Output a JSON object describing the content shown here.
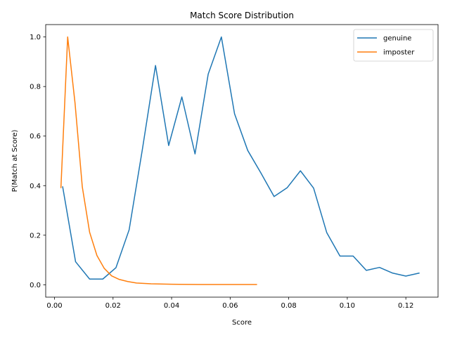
{
  "chart_data": {
    "type": "line",
    "title": "Match Score Distribution",
    "xlabel": "Score",
    "ylabel": "P(Match at Score)",
    "xlim": [
      -0.003,
      0.131
    ],
    "ylim": [
      -0.05,
      1.05
    ],
    "xticks": [
      0.0,
      0.02,
      0.04,
      0.06,
      0.08,
      0.1,
      0.12
    ],
    "xtick_labels": [
      "0.00",
      "0.02",
      "0.04",
      "0.06",
      "0.08",
      "0.10",
      "0.12"
    ],
    "yticks": [
      0.0,
      0.2,
      0.4,
      0.6,
      0.8,
      1.0
    ],
    "ytick_labels": [
      "0.0",
      "0.2",
      "0.4",
      "0.6",
      "0.8",
      "1.0"
    ],
    "grid": false,
    "legend_position": "top-right",
    "series": [
      {
        "name": "genuine",
        "color": "#1f77b4",
        "x": [
          0.0028,
          0.0072,
          0.012,
          0.0165,
          0.021,
          0.0255,
          0.03,
          0.0345,
          0.039,
          0.0435,
          0.048,
          0.0525,
          0.057,
          0.0615,
          0.066,
          0.0705,
          0.075,
          0.0795,
          0.084,
          0.0885,
          0.093,
          0.0975,
          0.102,
          0.1065,
          0.111,
          0.1155,
          0.12,
          0.1245
        ],
        "y": [
          0.395,
          0.093,
          0.023,
          0.023,
          0.069,
          0.222,
          0.545,
          0.885,
          0.562,
          0.758,
          0.528,
          0.85,
          1.0,
          0.69,
          0.542,
          0.451,
          0.356,
          0.392,
          0.46,
          0.39,
          0.21,
          0.116,
          0.116,
          0.058,
          0.07,
          0.047,
          0.035,
          0.047
        ]
      },
      {
        "name": "imposter",
        "color": "#ff7f0e",
        "x": [
          0.0022,
          0.0045,
          0.007,
          0.0095,
          0.012,
          0.0145,
          0.017,
          0.0195,
          0.022,
          0.025,
          0.028,
          0.033,
          0.04,
          0.05,
          0.06,
          0.069
        ],
        "y": [
          0.392,
          1.0,
          0.735,
          0.395,
          0.212,
          0.118,
          0.066,
          0.036,
          0.022,
          0.013,
          0.007,
          0.004,
          0.002,
          0.001,
          0.001,
          0.001
        ]
      }
    ]
  }
}
